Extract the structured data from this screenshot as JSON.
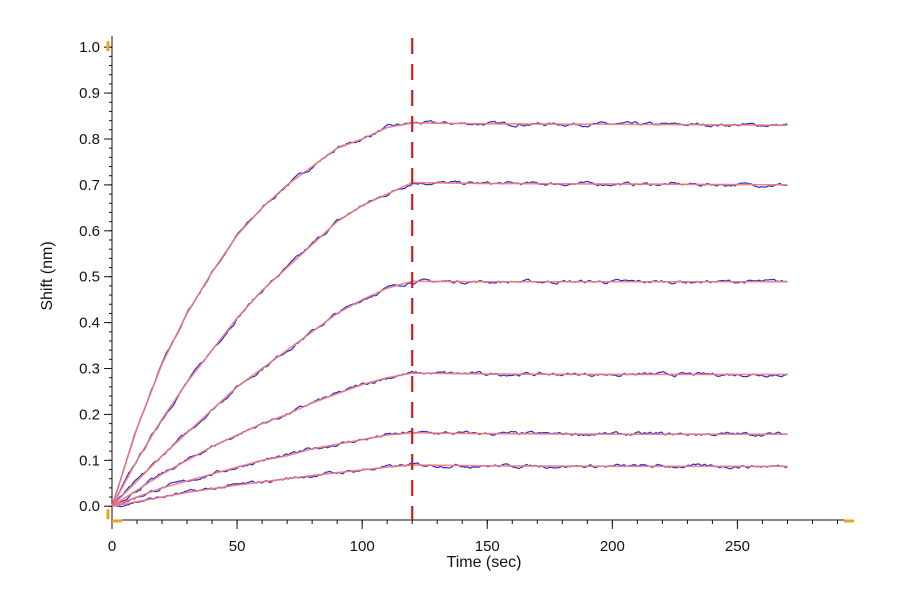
{
  "chart_data": {
    "type": "line",
    "title": "",
    "xlabel": "Time (sec)",
    "ylabel": "Shift (nm)",
    "xlim": [
      0,
      295
    ],
    "ylim": [
      -0.03,
      1.02
    ],
    "x_ticks": [
      0,
      50,
      100,
      150,
      200,
      250
    ],
    "x_tick_labels": [
      "0",
      "50",
      "100",
      "150",
      "200",
      "250"
    ],
    "y_ticks": [
      0.0,
      0.1,
      0.2,
      0.3,
      0.4,
      0.5,
      0.6,
      0.7,
      0.8,
      0.9,
      1.0
    ],
    "y_tick_labels": [
      "0.0",
      "0.1",
      "0.2",
      "0.3",
      "0.4",
      "0.5",
      "0.6",
      "0.7",
      "0.8",
      "0.9",
      "1.0"
    ],
    "grid": false,
    "legend": "none",
    "association_end_x": 120,
    "dissociation_end_x": 270,
    "marker_line_x": 120,
    "series": [
      {
        "x": [
          0,
          10,
          20,
          30,
          40,
          50,
          60,
          70,
          80,
          90,
          100,
          110,
          120,
          150,
          200,
          270
        ],
        "values": [
          0.0,
          0.17,
          0.31,
          0.42,
          0.51,
          0.59,
          0.65,
          0.7,
          0.74,
          0.78,
          0.8,
          0.825,
          0.835,
          0.833,
          0.832,
          0.83
        ]
      },
      {
        "x": [
          0,
          10,
          20,
          30,
          40,
          50,
          60,
          70,
          80,
          90,
          100,
          110,
          120,
          150,
          200,
          270
        ],
        "values": [
          0.0,
          0.1,
          0.19,
          0.27,
          0.34,
          0.41,
          0.47,
          0.52,
          0.57,
          0.62,
          0.655,
          0.68,
          0.705,
          0.703,
          0.702,
          0.7
        ]
      },
      {
        "x": [
          0,
          10,
          20,
          30,
          40,
          50,
          60,
          70,
          80,
          90,
          100,
          110,
          120,
          150,
          200,
          270
        ],
        "values": [
          0.0,
          0.055,
          0.11,
          0.16,
          0.21,
          0.26,
          0.3,
          0.34,
          0.38,
          0.42,
          0.45,
          0.475,
          0.49,
          0.489,
          0.489,
          0.489
        ]
      },
      {
        "x": [
          0,
          10,
          20,
          30,
          40,
          50,
          60,
          70,
          80,
          90,
          100,
          110,
          120,
          150,
          200,
          270
        ],
        "values": [
          0.0,
          0.035,
          0.07,
          0.1,
          0.13,
          0.155,
          0.18,
          0.2,
          0.225,
          0.245,
          0.265,
          0.28,
          0.29,
          0.288,
          0.287,
          0.287
        ]
      },
      {
        "x": [
          0,
          10,
          20,
          30,
          40,
          50,
          60,
          70,
          80,
          90,
          100,
          110,
          120,
          150,
          200,
          270
        ],
        "values": [
          0.0,
          0.02,
          0.04,
          0.055,
          0.07,
          0.085,
          0.1,
          0.11,
          0.125,
          0.135,
          0.145,
          0.155,
          0.16,
          0.158,
          0.157,
          0.157
        ]
      },
      {
        "x": [
          0,
          10,
          20,
          30,
          40,
          50,
          60,
          70,
          80,
          90,
          100,
          110,
          120,
          150,
          200,
          270
        ],
        "values": [
          0.0,
          0.01,
          0.02,
          0.03,
          0.038,
          0.046,
          0.053,
          0.06,
          0.067,
          0.073,
          0.079,
          0.085,
          0.09,
          0.088,
          0.087,
          0.087
        ]
      }
    ],
    "colors": {
      "measured": "#2a2ad8",
      "fit": "#f07a7a",
      "marker_line": "#cc1f1f",
      "axis_end_marks": "#f0a020"
    }
  }
}
